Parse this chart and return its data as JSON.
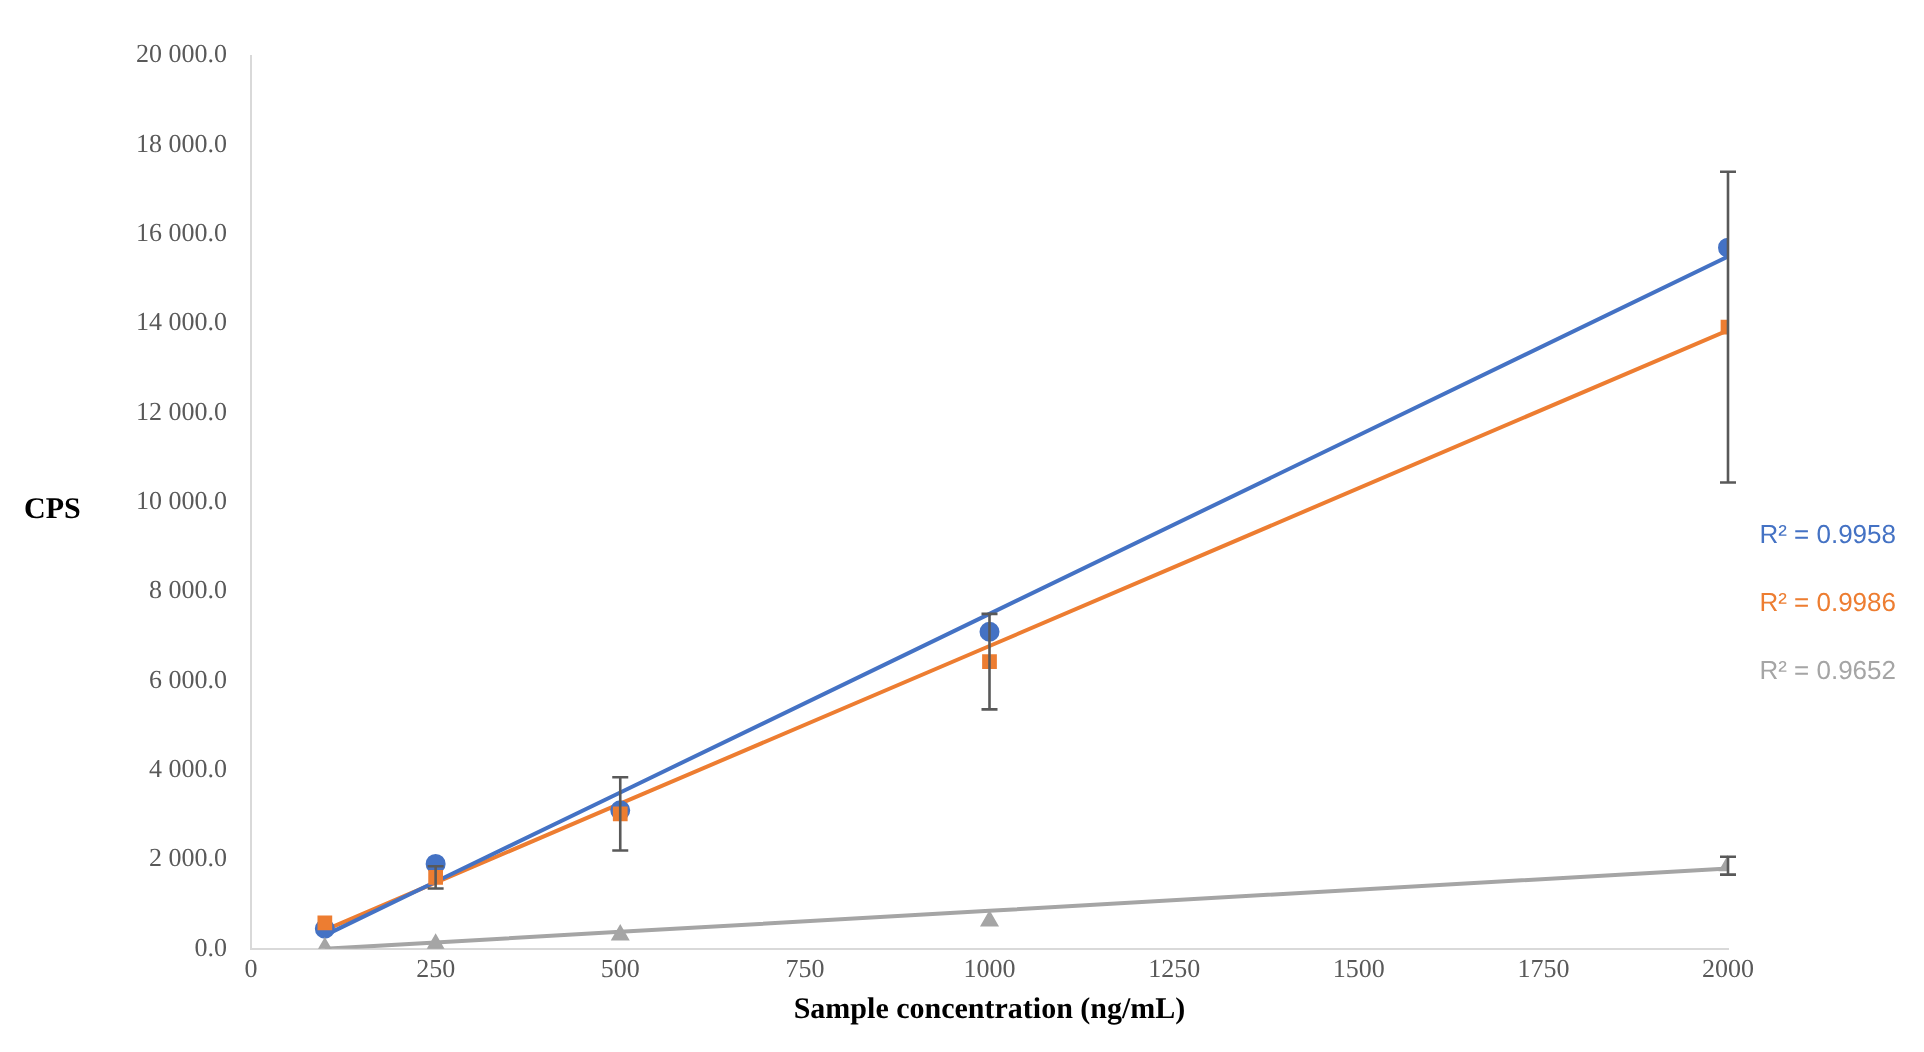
{
  "chart_data": {
    "type": "scatter",
    "xlabel": "Sample concentration (ng/mL)",
    "ylabel": "CPS",
    "x": [
      100,
      250,
      500,
      1000,
      2000
    ],
    "xlim": [
      0,
      2000
    ],
    "xticks": [
      0,
      250,
      500,
      750,
      1000,
      1250,
      1500,
      1750,
      2000
    ],
    "ylim": [
      0,
      20000
    ],
    "yticks": [
      {
        "value": 0,
        "label": "0.0"
      },
      {
        "value": 2000,
        "label": "2 000.0"
      },
      {
        "value": 4000,
        "label": "4 000.0"
      },
      {
        "value": 6000,
        "label": "6 000.0"
      },
      {
        "value": 8000,
        "label": "8 000.0"
      },
      {
        "value": 10000,
        "label": "10 000.0"
      },
      {
        "value": 12000,
        "label": "12 000.0"
      },
      {
        "value": 14000,
        "label": "14 000.0"
      },
      {
        "value": 16000,
        "label": "16 000.0"
      },
      {
        "value": 18000,
        "label": "18 000.0"
      },
      {
        "value": 20000,
        "label": "20 000.0"
      }
    ],
    "grid": false,
    "legend": false,
    "series": [
      {
        "type": "scatter",
        "color": "#4472c4",
        "marker": "circle",
        "values": [
          450,
          1900,
          3100,
          7100,
          15700
        ]
      },
      {
        "type": "scatter",
        "color": "#ed7d31",
        "marker": "square",
        "values": [
          580,
          1600,
          3020,
          6430,
          13920
        ],
        "errors": [
          null,
          250,
          820,
          1070,
          3480
        ]
      },
      {
        "type": "scatter",
        "color": "#a5a5a5",
        "marker": "triangle",
        "values": [
          20,
          100,
          310,
          620,
          1860
        ],
        "errors": [
          null,
          null,
          null,
          null,
          200
        ]
      },
      {
        "type": "line",
        "color": "#4472c4",
        "marker": "none",
        "values": [
          300,
          1500,
          3500,
          7500,
          15500
        ]
      },
      {
        "type": "line",
        "color": "#ed7d31",
        "marker": "none",
        "values": [
          420,
          1480,
          3250,
          6780,
          13850
        ]
      },
      {
        "type": "line",
        "color": "#a5a5a5",
        "marker": "none",
        "values": [
          0,
          140,
          380,
          850,
          1800
        ]
      }
    ],
    "annotations": [
      "R² = 0.9958",
      "R² = 0.9986",
      "R² = 0.9652"
    ]
  }
}
